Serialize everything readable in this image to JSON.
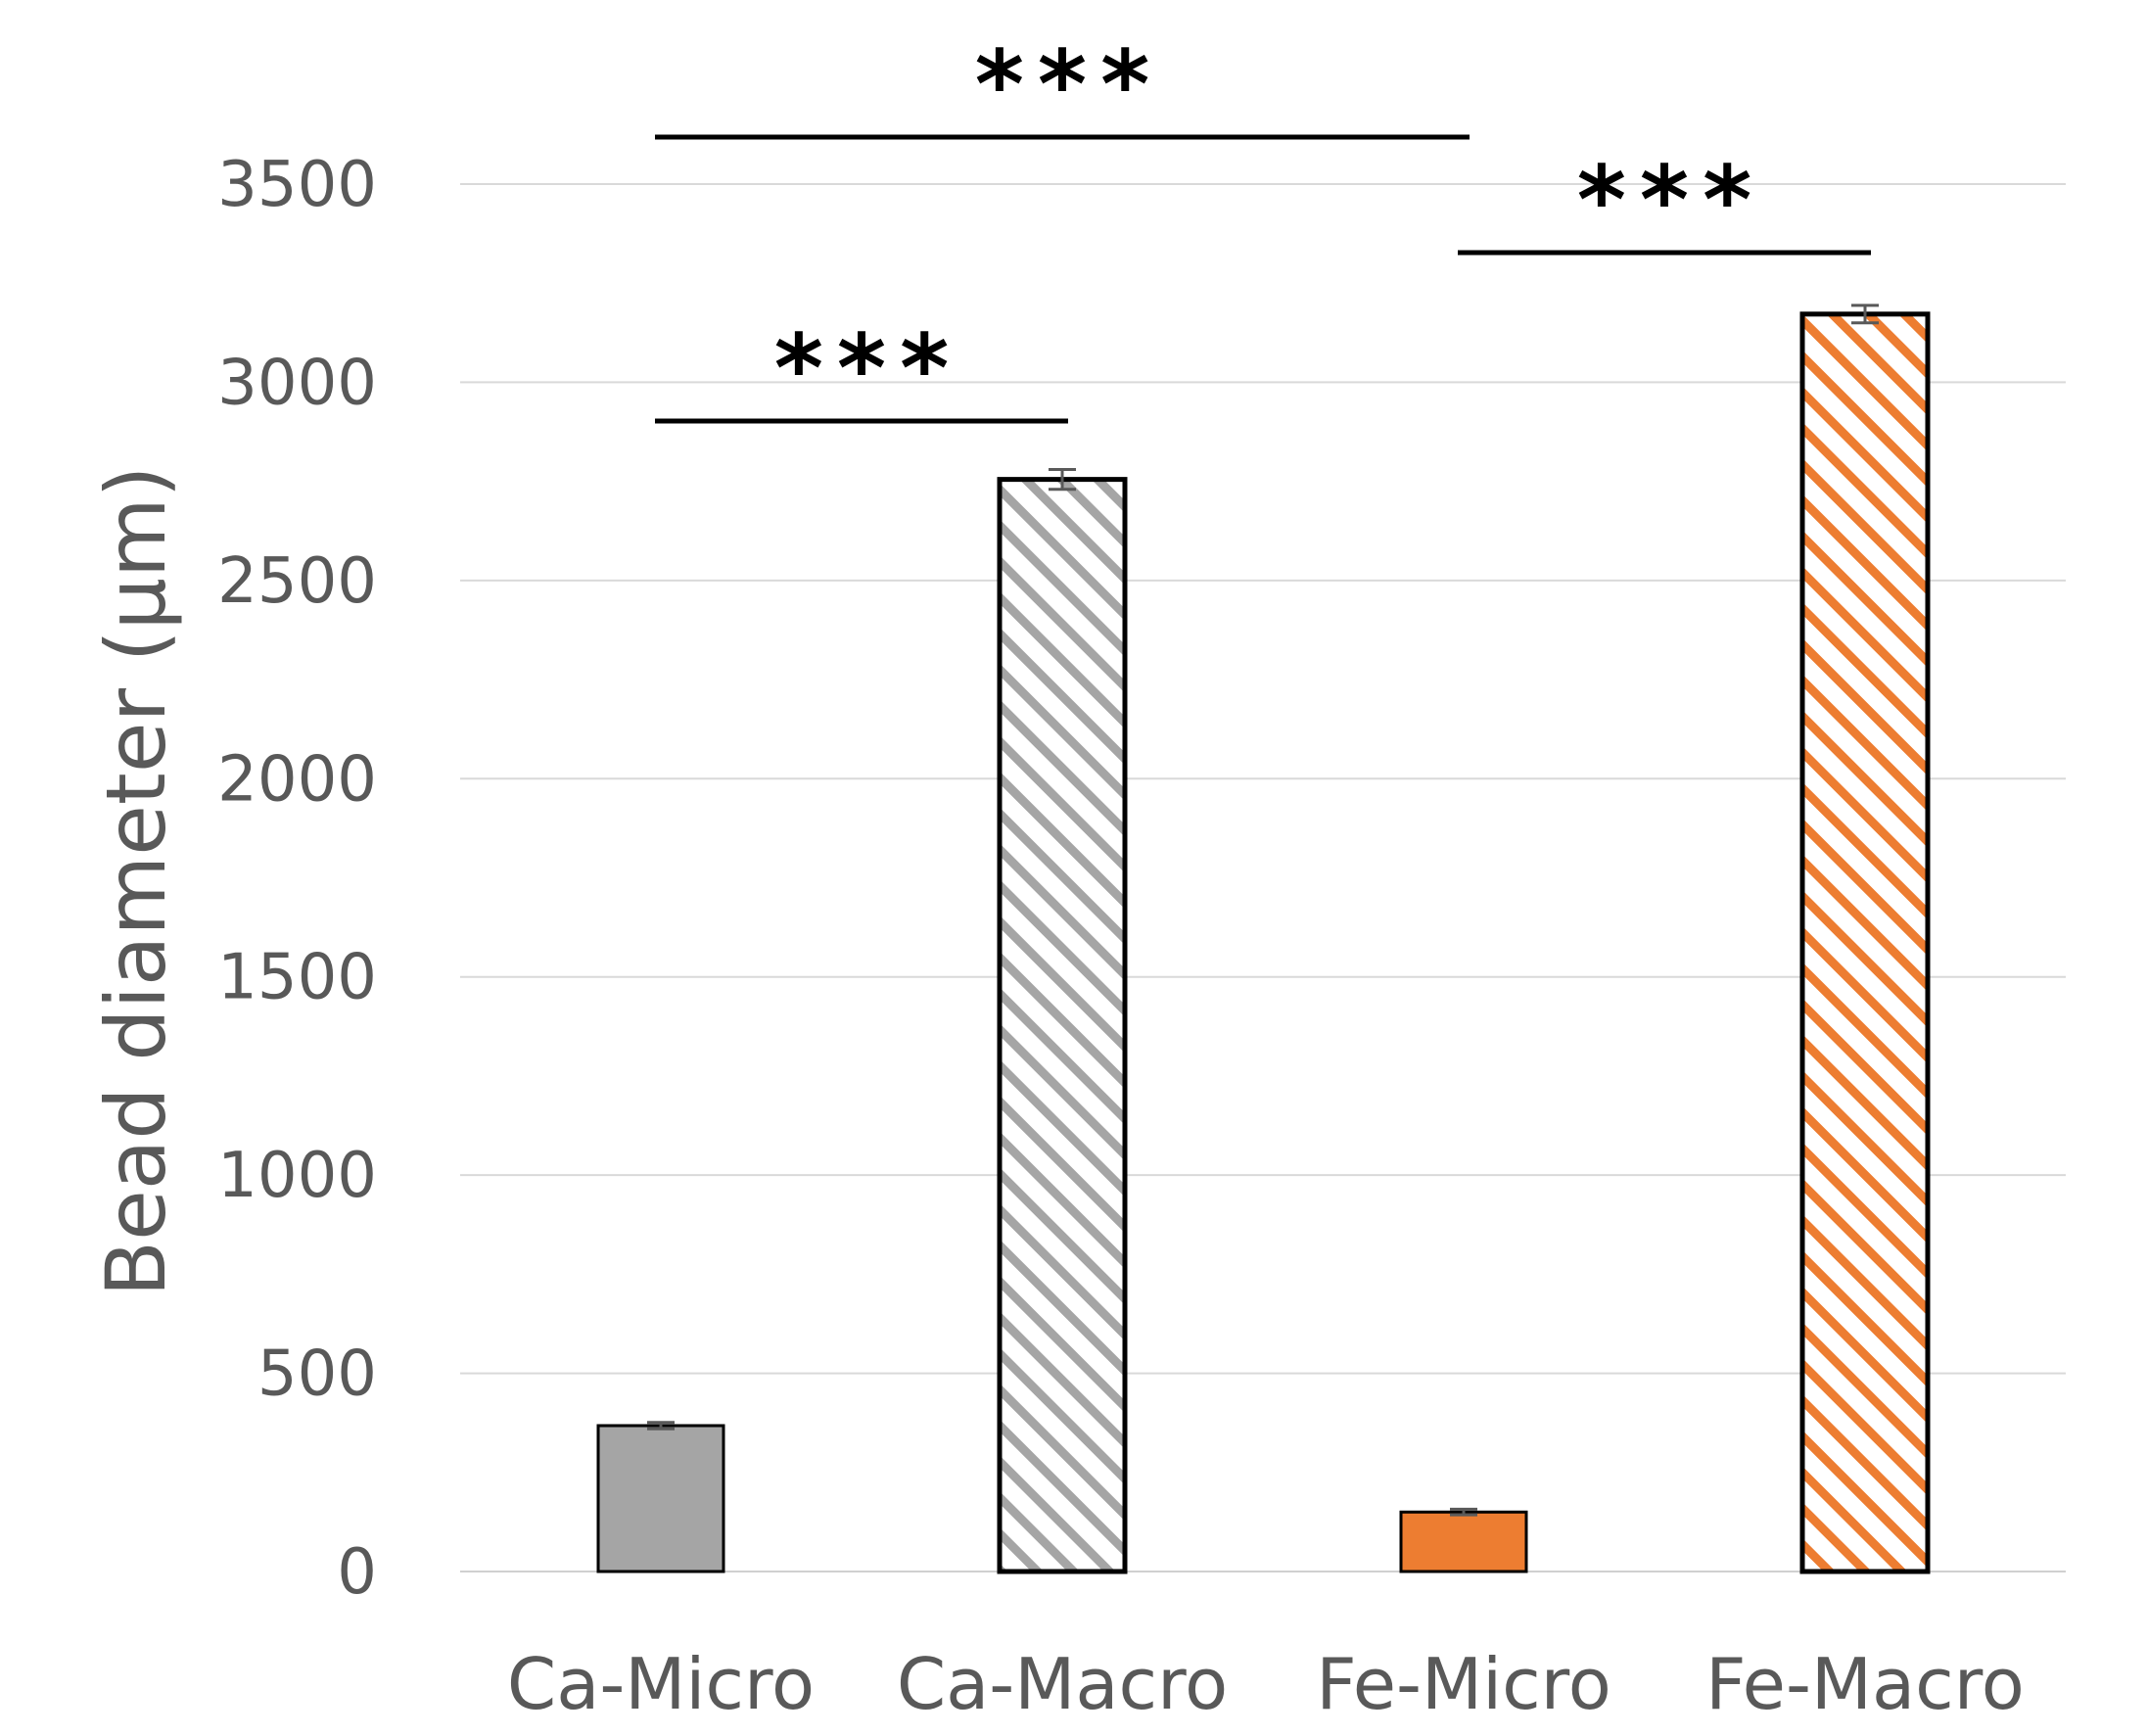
{
  "chart_data": {
    "type": "bar",
    "title": "",
    "xlabel": "",
    "ylabel": "Bead diameter (μm)",
    "ylim": [
      0,
      3500
    ],
    "yticks": [
      0,
      500,
      1000,
      1500,
      2000,
      2500,
      3000,
      3500
    ],
    "grid": true,
    "legend": "none",
    "categories": [
      "Ca-Micro",
      "Ca-Macro",
      "Fe-Micro",
      "Fe-Macro"
    ],
    "values": [
      368,
      2755,
      150,
      3172
    ],
    "errors": [
      8,
      25,
      7,
      22
    ],
    "bar_styles": [
      {
        "fill": "solid",
        "color": "#a5a5a5"
      },
      {
        "fill": "hatched",
        "color": "#a5a5a5"
      },
      {
        "fill": "solid",
        "color": "#ed7d31"
      },
      {
        "fill": "hatched",
        "color": "#ed7d31"
      }
    ],
    "significance": [
      {
        "from": "Ca-Micro",
        "to": "Ca-Macro",
        "label": "***"
      },
      {
        "from": "Ca-Micro",
        "to": "Fe-Micro",
        "label": "***"
      },
      {
        "from": "Fe-Micro",
        "to": "Fe-Macro",
        "label": "***"
      }
    ]
  }
}
